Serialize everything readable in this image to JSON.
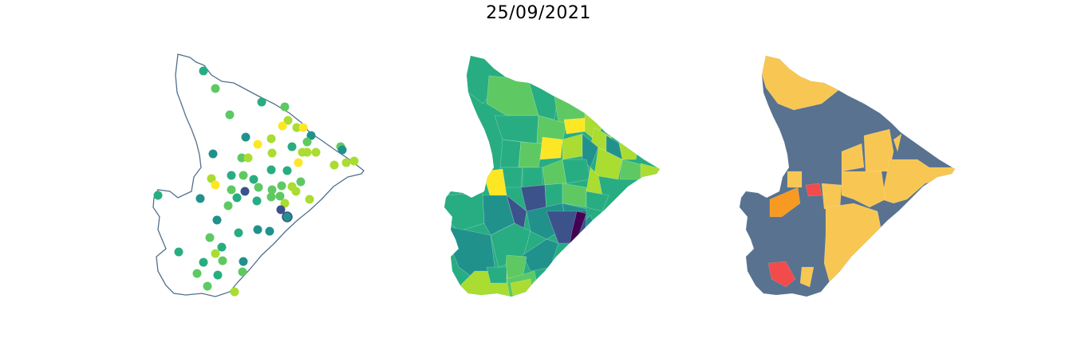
{
  "title": "25/09/2021",
  "colors": {
    "outline": "#51708c",
    "viridis": [
      "#440154",
      "#3b528b",
      "#21918c",
      "#27ad81",
      "#5ec962",
      "#aadc32",
      "#fde725"
    ],
    "categories": {
      "navy": "#58728f",
      "yellow": "#f8c753",
      "orange": "#f79a23",
      "red": "#f24b4b"
    }
  }
}
